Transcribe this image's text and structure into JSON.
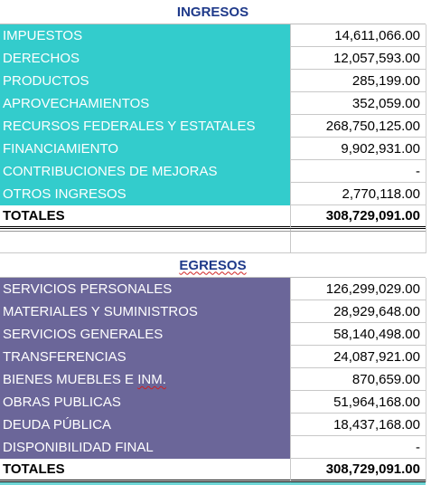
{
  "ingresos": {
    "title": "INGRESOS",
    "rows": [
      {
        "label": "IMPUESTOS",
        "value": "14,611,066.00"
      },
      {
        "label": "DERECHOS",
        "value": "12,057,593.00"
      },
      {
        "label": "PRODUCTOS",
        "value": "285,199.00"
      },
      {
        "label": "APROVECHAMIENTOS",
        "value": "352,059.00"
      },
      {
        "label": "RECURSOS FEDERALES Y ESTATALES",
        "value": "268,750,125.00"
      },
      {
        "label": "FINANCIAMIENTO",
        "value": "9,902,931.00"
      },
      {
        "label": "CONTRIBUCIONES DE MEJORAS",
        "value": "-"
      },
      {
        "label": "OTROS INGRESOS",
        "value": "2,770,118.00"
      }
    ],
    "total_label": "TOTALES",
    "total_value": "308,729,091.00"
  },
  "egresos": {
    "title": "EGRESOS",
    "rows": [
      {
        "label": "SERVICIOS PERSONALES",
        "value": "126,299,029.00"
      },
      {
        "label": "MATERIALES Y SUMINISTROS",
        "value": "28,929,648.00"
      },
      {
        "label": "SERVICIOS GENERALES",
        "value": "58,140,498.00"
      },
      {
        "label": "TRANSFERENCIAS",
        "value": "24,087,921.00"
      },
      {
        "label_pre": "BIENES MUEBLES E ",
        "label_mark": "INM.",
        "value": "870,659.00"
      },
      {
        "label": "OBRAS PUBLICAS",
        "value": "51,964,168.00"
      },
      {
        "label": "DEUDA PÚBLICA",
        "value": "18,437,168.00"
      },
      {
        "label": "DISPONIBILIDAD FINAL",
        "value": "-"
      }
    ],
    "total_label": "TOTALES",
    "total_value": "308,729,091.00"
  },
  "colors": {
    "ingresos_fill": "#33cccc",
    "egresos_fill": "#6b6699",
    "title_text": "#1f3a8a"
  }
}
